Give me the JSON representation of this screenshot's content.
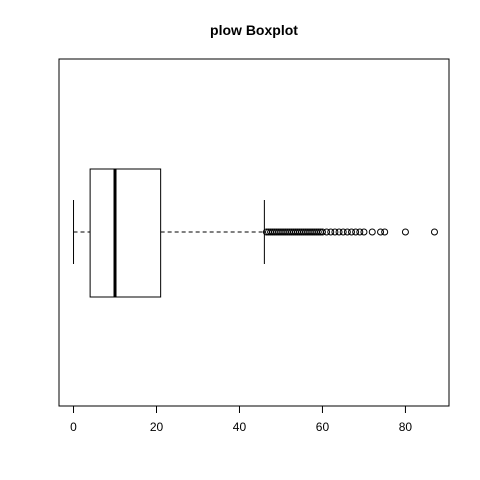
{
  "chart_data": {
    "type": "boxplot",
    "title": "plow Boxplot",
    "orientation": "horizontal",
    "xlabel": "",
    "ylabel": "",
    "xlim": [
      -3.5,
      90.5
    ],
    "xticks": [
      0,
      20,
      40,
      60,
      80
    ],
    "whisker_low": 0,
    "q1": 4,
    "median": 10,
    "q3": 21,
    "whisker_high": 46,
    "outliers": [
      46.5,
      47,
      47.5,
      48,
      48.5,
      49,
      49.5,
      50,
      50.5,
      51,
      51.5,
      52,
      52.5,
      53,
      53.5,
      54,
      54.5,
      55,
      55.5,
      56,
      56.5,
      57,
      57.5,
      58,
      58.5,
      59,
      59.5,
      60,
      61,
      62,
      63,
      64,
      65,
      66,
      67,
      68,
      69,
      70,
      72,
      74,
      75,
      80,
      87
    ],
    "colors": {
      "box": "#000000",
      "background": "#ffffff"
    }
  }
}
